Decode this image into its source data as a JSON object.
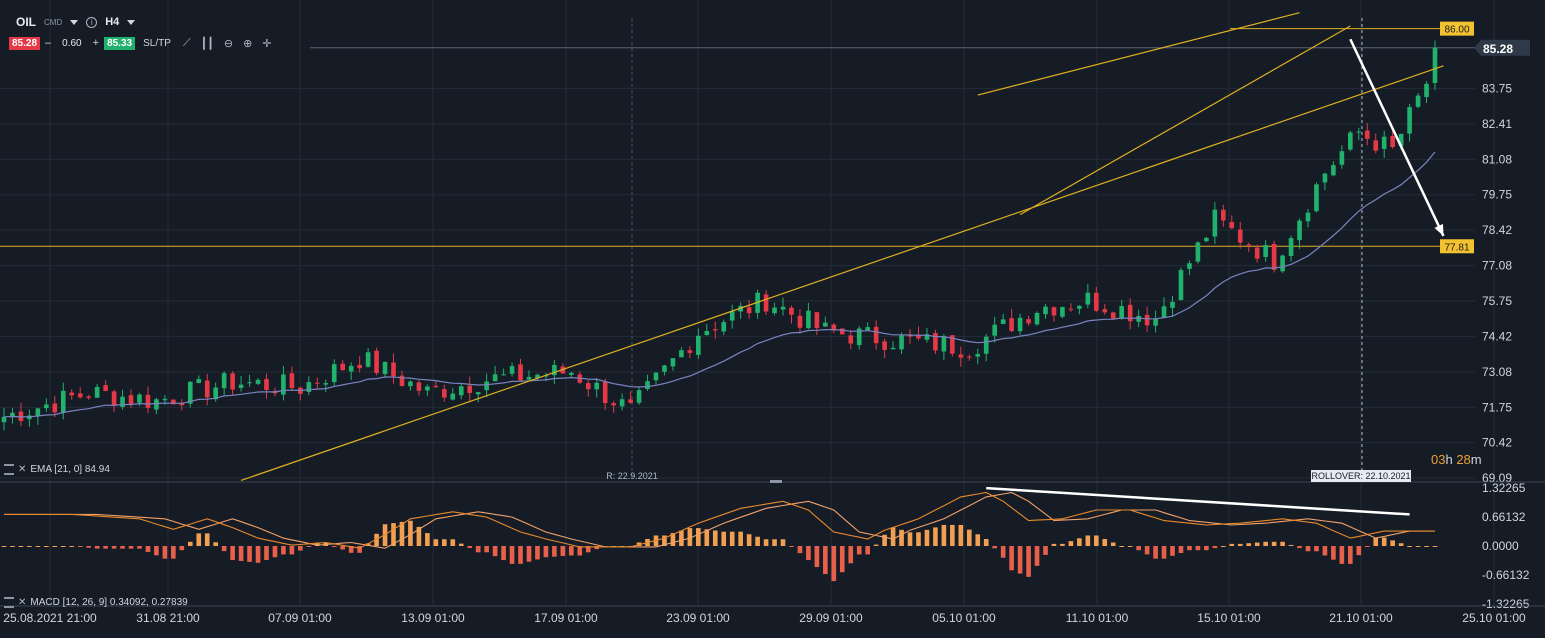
{
  "toolbar": {
    "symbol": "OIL",
    "symbol_type": "CMD",
    "timeframe": "H4",
    "sell_price": "85.28",
    "spread": "0.60",
    "buy_price": "85.33",
    "minus_label": "–",
    "plus_label": "+",
    "sltp_label": "SL/TP",
    "tools": [
      "line-chart-icon",
      "candles-icon",
      "zoom-out-icon",
      "zoom-in-icon",
      "crosshair-icon"
    ]
  },
  "colors": {
    "background": "#151c26",
    "grid": "#232c37",
    "bull": "#20b26c",
    "bear": "#e53947",
    "ema": "#7a84c0",
    "trend": "#e0b020",
    "macd_line": "#e8892c",
    "signal_line": "#f0a06a",
    "hist_pos": "#f0a050",
    "hist_neg": "#e8604a",
    "current_price": "#2f3a48",
    "arrow": "#ffffff"
  },
  "indicators": {
    "ema_label": "EMA [21, 0] 84.94",
    "macd_label": "MACD [12, 26, 9] 0.34092, 0.27839"
  },
  "markers": {
    "r_label": "R: 22.9.2021",
    "rollover_label": "ROLLOVER: 22.10.2021",
    "timer_hours": "03",
    "timer_h": "h",
    "timer_minutes": "28",
    "timer_m": "m"
  },
  "chart_data": [
    {
      "type": "candlestick",
      "instrument": "OIL",
      "timeframe": "H4",
      "x_tick_labels": [
        "25.08.2021 21:00",
        "31.08 21:00",
        "07.09 01:00",
        "13.09 01:00",
        "17.09 01:00",
        "23.09 01:00",
        "29.09 01:00",
        "05.10 01:00",
        "11.10 01:00",
        "15.10 01:00",
        "21.10 01:00",
        "25.10 01:00"
      ],
      "y_tick_labels": [
        "83.75",
        "82.41",
        "81.08",
        "79.75",
        "78.42",
        "77.08",
        "75.75",
        "74.42",
        "73.08",
        "71.75",
        "70.42",
        "69.09"
      ],
      "ylim": [
        69.09,
        86.4
      ],
      "price_levels": [
        {
          "label": "86.00",
          "value": 86.0
        },
        {
          "label": "77.81",
          "value": 77.81
        }
      ],
      "current_price": {
        "label": "85.28",
        "value": 85.28
      },
      "close_path": {
        "candle_count": 170,
        "x": [
          0,
          10,
          18,
          27,
          35,
          42,
          50,
          57,
          67,
          74,
          82,
          90,
          97,
          105,
          114,
          122,
          128,
          136,
          143,
          150,
          156,
          160,
          164,
          169
        ],
        "close": [
          71.4,
          72.3,
          72.0,
          72.7,
          72.5,
          73.6,
          72.3,
          72.8,
          73.1,
          71.6,
          74.6,
          75.8,
          74.6,
          74.3,
          74.0,
          75.5,
          75.8,
          75.1,
          78.8,
          77.3,
          80.6,
          82.1,
          81.4,
          84.6
        ]
      },
      "ema": {
        "period": 21,
        "last_value": 84.94
      },
      "trendlines": [
        {
          "from": {
            "x_index": 28,
            "price": 69.0
          },
          "to": {
            "x_index": 170,
            "price": 84.6
          }
        },
        {
          "from": {
            "x_index": 115,
            "price": 83.5
          },
          "to": {
            "x_index": 153,
            "price": 86.6
          }
        },
        {
          "from": {
            "x_index": 120,
            "price": 79.0
          },
          "to": {
            "x_index": 159,
            "price": 86.1
          }
        }
      ],
      "forecast_arrow": {
        "from": {
          "x_index": 159,
          "price": 85.6
        },
        "to": {
          "x_index": 170,
          "price": 78.2
        }
      }
    },
    {
      "type": "macd",
      "label": "MACD [12, 26, 9] 0.34092, 0.27839",
      "macd_value": 0.34092,
      "signal_value": 0.27839,
      "y_tick_labels": [
        "1.32265",
        "0.66132",
        "0.0000",
        "-0.66132",
        "-1.32265"
      ],
      "ylim": [
        -1.32265,
        1.32265
      ],
      "macd_path": {
        "x": [
          0,
          8,
          16,
          20,
          24,
          27,
          30,
          34,
          38,
          42,
          45,
          48,
          53,
          57,
          61,
          64,
          68,
          74,
          78,
          82,
          87,
          92,
          95,
          98,
          102,
          104,
          108,
          113,
          116,
          118,
          121,
          125,
          129,
          133,
          137,
          142,
          146,
          151,
          155,
          159,
          163,
          167
        ],
        "macd": [
          0.72,
          0.72,
          0.62,
          0.38,
          0.62,
          0.42,
          0.18,
          0.02,
          0.08,
          -0.05,
          0.26,
          0.62,
          0.78,
          0.66,
          0.32,
          0.16,
          -0.02,
          -0.02,
          0.18,
          0.52,
          0.86,
          1.02,
          0.82,
          0.32,
          0.16,
          0.36,
          0.62,
          1.12,
          1.22,
          1.02,
          0.58,
          0.62,
          0.82,
          0.82,
          0.58,
          0.48,
          0.52,
          0.62,
          0.52,
          0.18,
          0.34,
          0.34
        ]
      },
      "signal_lag_bars": 3,
      "trendline": {
        "from": {
          "x_index": 116,
          "value": 1.32
        },
        "to": {
          "x_index": 166,
          "value": 0.72
        }
      }
    }
  ]
}
